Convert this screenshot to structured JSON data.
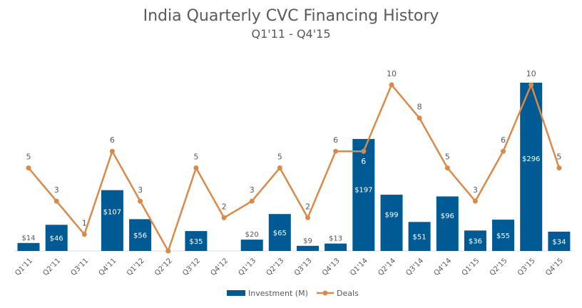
{
  "chart_data": {
    "type": "bar+line",
    "title": "India Quarterly CVC Financing History",
    "subtitle": "Q1'11 - Q4'15",
    "categories": [
      "Q1'11",
      "Q2'11",
      "Q3'11",
      "Q4'11",
      "Q1'12",
      "Q2'12",
      "Q3'12",
      "Q4'12",
      "Q1'13",
      "Q2'13",
      "Q3'13",
      "Q4'13",
      "Q1'14",
      "Q2'14",
      "Q3'14",
      "Q4'14",
      "Q1'15",
      "Q2'15",
      "Q3'15",
      "Q4'15"
    ],
    "series": [
      {
        "name": "Investment (M)",
        "type": "bar",
        "color": "#005b94",
        "values": [
          14,
          46,
          null,
          107,
          56,
          null,
          35,
          null,
          20,
          65,
          9,
          13,
          197,
          99,
          51,
          96,
          36,
          55,
          296,
          34
        ],
        "labels": [
          "$14",
          "$46",
          "",
          "$107",
          "$56",
          "",
          "$35",
          "",
          "$20",
          "$65",
          "$9",
          "$13",
          "$197",
          "$99",
          "$51",
          "$96",
          "$36",
          "$55",
          "$296",
          "$34"
        ]
      },
      {
        "name": "Deals",
        "type": "line",
        "color": "#d98a4a",
        "values": [
          5,
          3,
          1,
          6,
          3,
          0,
          5,
          2,
          3,
          5,
          2,
          6,
          6,
          10,
          8,
          5,
          3,
          6,
          10,
          5
        ],
        "labels": [
          "5",
          "3",
          "1",
          "6",
          "3",
          "",
          "5",
          "2",
          "3",
          "5",
          "2",
          "6",
          "6",
          "10",
          "8",
          "5",
          "3",
          "6",
          "10",
          "5"
        ]
      }
    ],
    "y_left_range": [
      0,
      296
    ],
    "y_right_range": [
      0,
      10
    ],
    "legend_position": "bottom-center",
    "grid": false
  }
}
